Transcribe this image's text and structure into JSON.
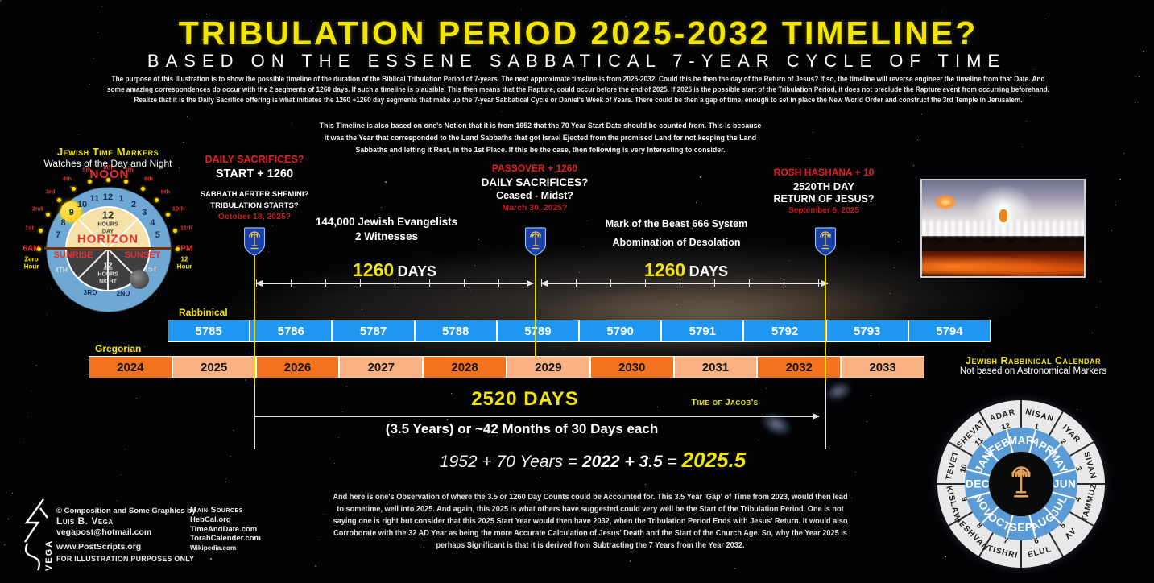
{
  "title": "TRIBULATION PERIOD 2025-2032 TIMELINE?",
  "subtitle": "BASED ON THE ESSENE SABBATICAL 7-YEAR CYCLE OF TIME",
  "intro_lines": [
    "The purpose of this illustration is to show the possible timeline of the duration of the Biblical Tribulation Period of 7-years. The next approximate timeline is from 2025-2032. Could this be then the day of the Return of Jesus? If so, the timeline will reverse engineer the timeline from that Date. And",
    "some amazing correspondences do occur with the 2 segments of 1260 days. If such a timeline is plausible. This then means that the Rapture, could occur before the end of 2025. If 2025 is the possible start of the Tribulation Period, it does not preclude the Rapture event from occurring beforehand.",
    "Realize that it is the Daily Sacrifice offering is what initiates the 1260 +1260 day segments that make up the 7-year Sabbatical Cycle or Daniel's Week of Years. There could be then a gap of time, enough to set in place the New World Order and construct the 3rd Temple in Jerusalem."
  ],
  "notion_lines": [
    "This Timeline is also based on one's Notion that it is from 1952 that the 70 Year Start Date should be counted from. This is because",
    "it was the Year that corresponded to the Land Sabbaths that got Israel Ejected from the promised Land for not keeping the Land",
    "Sabbaths and letting it Rest, in the 1st Place. If this be the case, then following is very Interesting to consider."
  ],
  "clock": {
    "heading": "Jewish Time Markers",
    "subheading": "Watches of the Day and Night",
    "noon": "NOON",
    "horizon": "HORIZON",
    "sunrise": "SUNRISE",
    "sunset": "SUNSET",
    "am": "6AM",
    "pm": "6PM",
    "zero_hour_1": "Zero",
    "zero_hour_2": "Hour",
    "twelve_hour_1": "12",
    "twelve_hour_2": "Hour",
    "day_12": "12",
    "day_hours": "HOURS",
    "day_word": "DAY",
    "night_12": "12",
    "night_hours": "HOURS",
    "night_word": "NIGHT",
    "numbers": [
      "7",
      "8",
      "9",
      "10",
      "11",
      "12",
      "1",
      "2",
      "3",
      "4",
      "5"
    ],
    "hour_marks": [
      "1st",
      "2nd",
      "3rd",
      "4th",
      "5th",
      "6th",
      "7th",
      "8th",
      "9th",
      "10th",
      "11th"
    ],
    "watches": [
      "4TH",
      "3RD",
      "2ND",
      "1ST"
    ]
  },
  "events": [
    {
      "heading": "DAILY SACRIFICES?",
      "line2": "START + 1260",
      "line3": "SABBATH AFRTER SHEMINI?",
      "line4": "TRIBULATION STARTS?",
      "date": "October 18, 2025?"
    },
    {
      "heading": "PASSOVER + 1260",
      "line2": "DAILY SACRIFICES?",
      "line3": "Ceased - Midst?",
      "date": "March 30, 2025?"
    },
    {
      "heading": "ROSH HASHANA + 10",
      "line2": "2520TH DAY",
      "line3": "RETURN OF JESUS?",
      "date": "September 6, 2025"
    }
  ],
  "midpoints": {
    "witnesses_1": "144,000 Jewish Evangelists",
    "witnesses_2": "2 Witnesses",
    "beast_1": "Mark of the Beast 666 System",
    "beast_2": "Abomination of Desolation"
  },
  "segments": {
    "seg1_num": "1260",
    "seg1_unit": "DAYS",
    "seg2_num": "1260",
    "seg2_unit": "DAYS",
    "total": "2520 DAYS",
    "jacob": "Time of Jacob's",
    "months_note": "(3.5 Years) or ~42 Months of 30 Days each"
  },
  "rows": {
    "rabbinical_label": "Rabbinical",
    "gregorian_label": "Gregorian",
    "rabbinical": [
      "5785",
      "5786",
      "5787",
      "5788",
      "5789",
      "5790",
      "5791",
      "5792",
      "5793",
      "5794"
    ],
    "gregorian": [
      "2024",
      "2025",
      "2026",
      "2027",
      "2028",
      "2029",
      "2030",
      "2031",
      "2032",
      "2033"
    ]
  },
  "formula": {
    "lead": "1952 + 70 Years = ",
    "mid": "2022 + 3.5",
    "eq": " = ",
    "result": "2025.5"
  },
  "observation_lines": [
    "And here is one's Observation of where the 3.5 or 1260 Day Counts could be Accounted for. This 3.5 Year 'Gap' of Time from 2023, would then lead",
    "to sometime, well into 2025. And again, this 2025 is what others have suggested could very well be the Start of the Tribulation Period. One is not",
    "saying one is right but consider that this 2025 Start Year would then have 2032, when the Tribulation Period Ends with Jesus' Return. It would also",
    "Corroborate with the 32 AD Year as being the more Accurate Calculation of Jesus' Death and the Start of the Church Age. So, why the Year 2025 is",
    "perhaps Significant is that it is derived from Subtracting the 7 Years from the Year 2032."
  ],
  "credits": {
    "copyright": "© Composition and Some Graphics by",
    "name": "Luis B. Vega",
    "email": "vegapost@hotmail.com",
    "site": "www.PostScripts.org",
    "disclaimer": "FOR ILLUSTRATION PURPOSES ONLY",
    "logo_text": "VEGA"
  },
  "sources": {
    "heading": "Main Sources",
    "items": [
      "HebCal.org",
      "TimeAndDate.com",
      "TorahCalender.com",
      "Wikipedia.com"
    ]
  },
  "wheel": {
    "heading": "Jewish Rabbinical Calendar",
    "subheading": "Not based on Astronomical Markers",
    "hebrew_months": [
      "NISAN",
      "IYAR",
      "SIVAN",
      "TAMMUZ",
      "AV",
      "ELUL",
      "TISHRI",
      "HESHVAN",
      "KISLAV",
      "TEVET",
      "SHEVAT",
      "ADAR"
    ],
    "month_numbers": [
      "1",
      "2",
      "3",
      "4",
      "5",
      "6",
      "7",
      "8",
      "9",
      "10",
      "11",
      "12"
    ],
    "gregorian_months": [
      "MAR",
      "APR",
      "MAY",
      "JUN",
      "JUL",
      "AUG",
      "SEP",
      "OCT",
      "NOV",
      "DEC",
      "JAN",
      "FEB"
    ]
  },
  "colors": {
    "accent_yellow": "#F2E500",
    "accent_red": "#E41E1E",
    "rabbinical_blue": "#1E97F3",
    "gregorian_orange": "#F3711F",
    "gregorian_light": "#F9B183"
  }
}
